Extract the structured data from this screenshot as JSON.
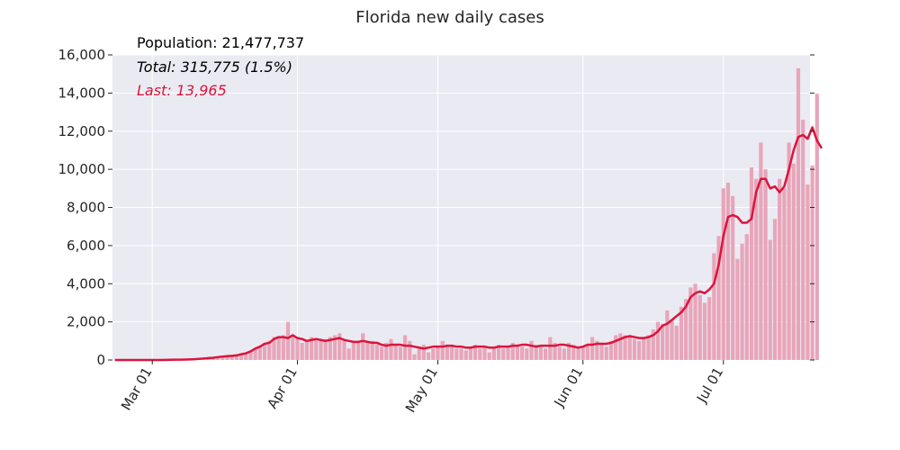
{
  "chart_data": {
    "type": "bar",
    "title": "Florida new daily cases",
    "xlabel": "",
    "ylabel": "",
    "annotations": {
      "population": "Population: 21,477,737",
      "total": "Total: 315,775 (1.5%)",
      "last": "Last: 13,965"
    },
    "x_start": "2020-02-22",
    "x_range": [
      "2020-02-22",
      "2020-07-19"
    ],
    "ylim": [
      0,
      16000
    ],
    "yticks": [
      0,
      2000,
      4000,
      6000,
      8000,
      10000,
      12000,
      14000,
      16000
    ],
    "ytick_labels": [
      "0",
      "2,000",
      "4,000",
      "6,000",
      "8,000",
      "10,000",
      "12,000",
      "14,000",
      "16,000"
    ],
    "xticks": [
      {
        "date": "2020-03-01",
        "label": "Mar 01"
      },
      {
        "date": "2020-04-01",
        "label": "Apr 01"
      },
      {
        "date": "2020-05-01",
        "label": "May 01"
      },
      {
        "date": "2020-06-01",
        "label": "Jun 01"
      },
      {
        "date": "2020-07-01",
        "label": "Jul 01"
      }
    ],
    "grid": true,
    "colors": {
      "plot_bg": "#eaeaf2",
      "bar": "#e8a5b9",
      "line": "#dc143c",
      "text": "#262626",
      "last_text": "#dc143c"
    },
    "series": [
      {
        "type": "bar",
        "values": [
          0,
          0,
          0,
          0,
          0,
          0,
          0,
          0,
          0,
          0,
          0,
          5,
          10,
          15,
          20,
          25,
          30,
          40,
          60,
          80,
          100,
          120,
          150,
          180,
          200,
          220,
          240,
          300,
          350,
          450,
          600,
          700,
          900,
          1000,
          1200,
          1250,
          1300,
          2000,
          1300,
          1100,
          900,
          1000,
          1200,
          1100,
          1000,
          1100,
          1200,
          1300,
          1400,
          1000,
          600,
          900,
          1000,
          1400,
          1000,
          1000,
          800,
          700,
          900,
          1100,
          800,
          700,
          1300,
          1000,
          300,
          700,
          800,
          400,
          600,
          700,
          1000,
          800,
          700,
          600,
          600,
          500,
          700,
          800,
          600,
          700,
          400,
          600,
          800,
          600,
          700,
          900,
          800,
          700,
          600,
          1000,
          800,
          700,
          600,
          1200,
          900,
          700,
          600,
          900,
          800,
          600,
          700,
          800,
          1200,
          1000,
          800,
          700,
          1000,
          1300,
          1400,
          1300,
          1300,
          1100,
          1000,
          1200,
          1300,
          1600,
          2000,
          1900,
          2600,
          2100,
          1800,
          2800,
          3200,
          3800,
          4000,
          3400,
          3000,
          3300,
          5600,
          6500,
          9000,
          9300,
          8600,
          5300,
          6100,
          6600,
          10100,
          9500,
          11400,
          10000,
          6300,
          7400,
          9500,
          9000,
          11400,
          10300,
          15300,
          12600,
          9200,
          10200,
          13965
        ]
      },
      {
        "type": "line",
        "values": [
          0,
          0,
          0,
          0,
          0,
          0,
          0,
          0,
          0,
          0,
          0,
          5,
          10,
          15,
          20,
          25,
          30,
          40,
          60,
          80,
          100,
          120,
          150,
          180,
          200,
          220,
          240,
          300,
          350,
          450,
          600,
          700,
          850,
          900,
          1100,
          1200,
          1200,
          1150,
          1300,
          1150,
          1100,
          1000,
          1050,
          1100,
          1050,
          1000,
          1050,
          1100,
          1150,
          1050,
          1000,
          950,
          950,
          1000,
          950,
          900,
          900,
          800,
          750,
          800,
          800,
          800,
          750,
          750,
          700,
          650,
          600,
          650,
          700,
          700,
          700,
          750,
          750,
          700,
          700,
          650,
          650,
          700,
          700,
          700,
          650,
          650,
          700,
          700,
          700,
          750,
          750,
          800,
          800,
          750,
          700,
          750,
          750,
          750,
          750,
          800,
          800,
          750,
          700,
          650,
          700,
          800,
          800,
          850,
          850,
          850,
          900,
          1000,
          1100,
          1200,
          1250,
          1200,
          1150,
          1150,
          1200,
          1300,
          1500,
          1800,
          1900,
          2100,
          2300,
          2500,
          2800,
          3300,
          3500,
          3600,
          3500,
          3700,
          4000,
          5000,
          6500,
          7500,
          7600,
          7500,
          7200,
          7200,
          7400,
          8800,
          9500,
          9500,
          9000,
          9100,
          8800,
          9100,
          10000,
          11000,
          11700,
          11800,
          11600,
          12200,
          11500,
          11100
        ]
      }
    ]
  }
}
